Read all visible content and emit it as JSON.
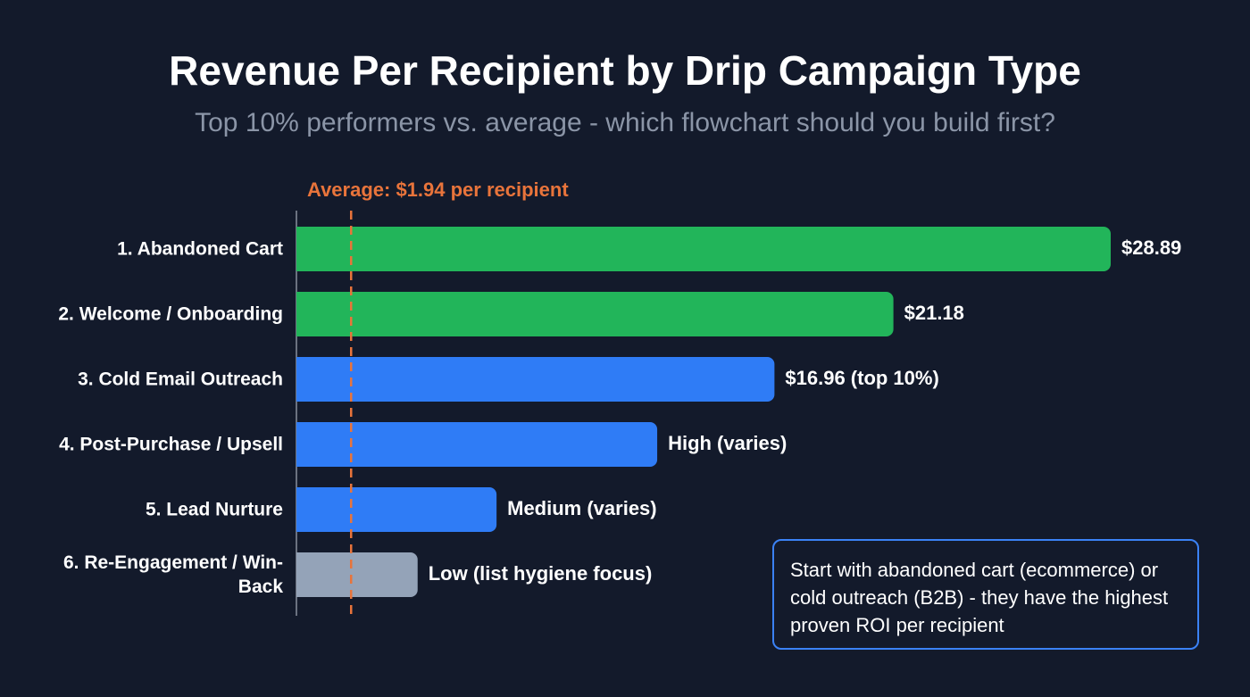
{
  "chart_data": {
    "type": "bar",
    "orientation": "horizontal",
    "title": "Revenue Per Recipient by Drip Campaign Type",
    "subtitle": "Top 10% performers vs. average - which flowchart should you build first?",
    "categories": [
      "1. Abandoned Cart",
      "2. Welcome / Onboarding",
      "3. Cold Email Outreach",
      "4. Post-Purchase / Upsell",
      "5. Lead Nurture",
      "6. Re-Engagement / Win-Back"
    ],
    "values": [
      28.89,
      21.18,
      16.96,
      12.8,
      7.1,
      4.3
    ],
    "value_labels": [
      "$28.89",
      "$21.18",
      "$16.96 (top 10%)",
      "High (varies)",
      "Medium (varies)",
      "Low (list hygiene focus)"
    ],
    "colors": [
      "#22b55a",
      "#22b55a",
      "#2f7cf6",
      "#2f7cf6",
      "#2f7cf6",
      "#94a3b8"
    ],
    "average": {
      "value": 1.94,
      "label": "Average: $1.94 per recipient",
      "color": "#e8743b"
    },
    "callout": "Start with abandoned cart (ecommerce) or cold outreach (B2B) - they have the highest proven ROI per recipient"
  }
}
